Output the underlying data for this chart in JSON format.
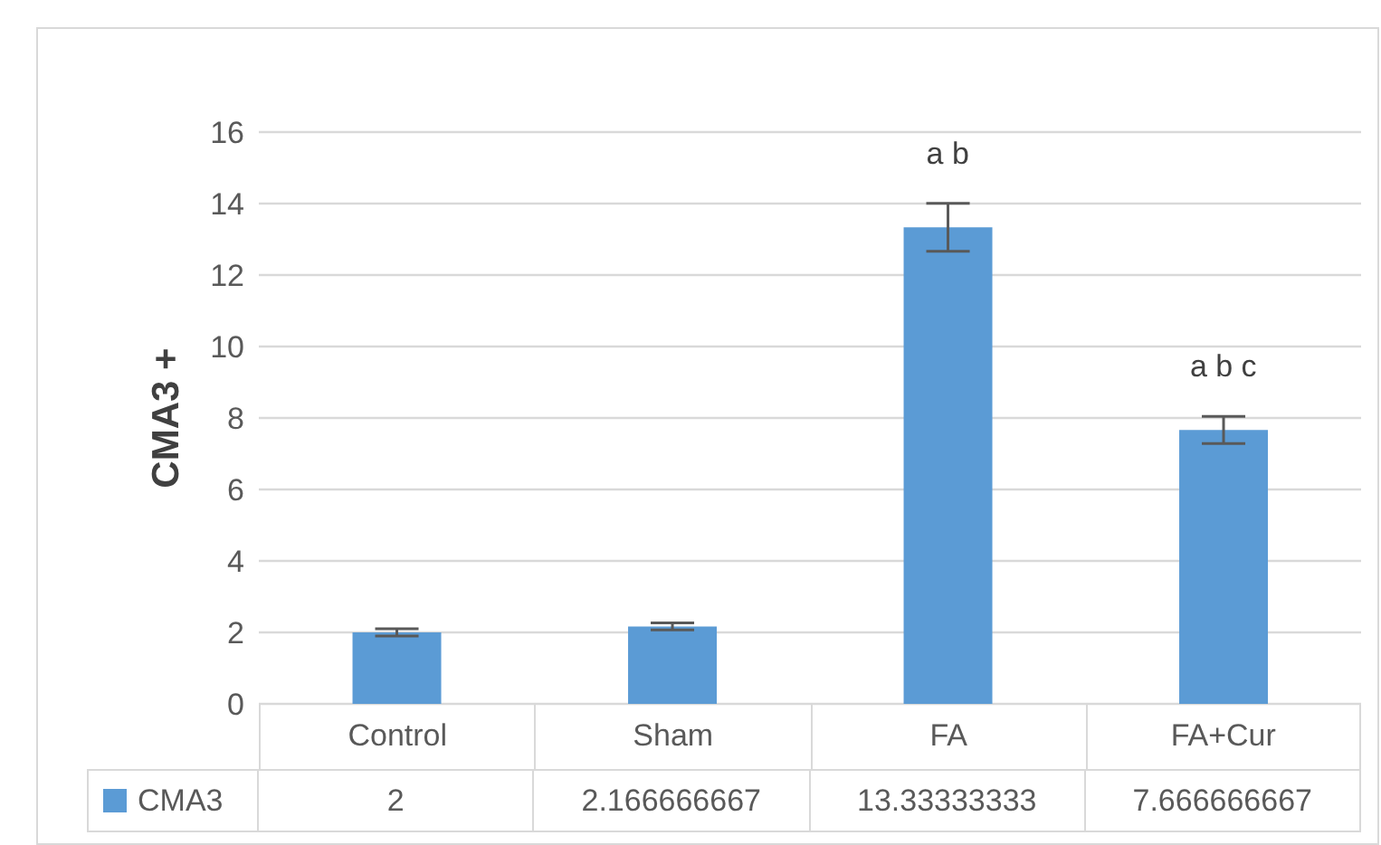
{
  "chart_data": {
    "type": "bar",
    "ylabel": "CMA3 +",
    "categories": [
      "Control",
      "Sham",
      "FA",
      "FA+Cur"
    ],
    "series": [
      {
        "name": "CMA3",
        "color": "#5b9bd5",
        "values": [
          2,
          2.166666667,
          13.33333333,
          7.666666667
        ],
        "errors": [
          0.1,
          0.1,
          0.67,
          0.38
        ]
      }
    ],
    "ylim": [
      0,
      16
    ],
    "yticks": [
      0,
      2,
      4,
      6,
      8,
      10,
      12,
      14,
      16
    ],
    "grid": "y",
    "legend": "bottom",
    "data_labels": true,
    "annotations": [
      "a b",
      "a b c"
    ]
  }
}
